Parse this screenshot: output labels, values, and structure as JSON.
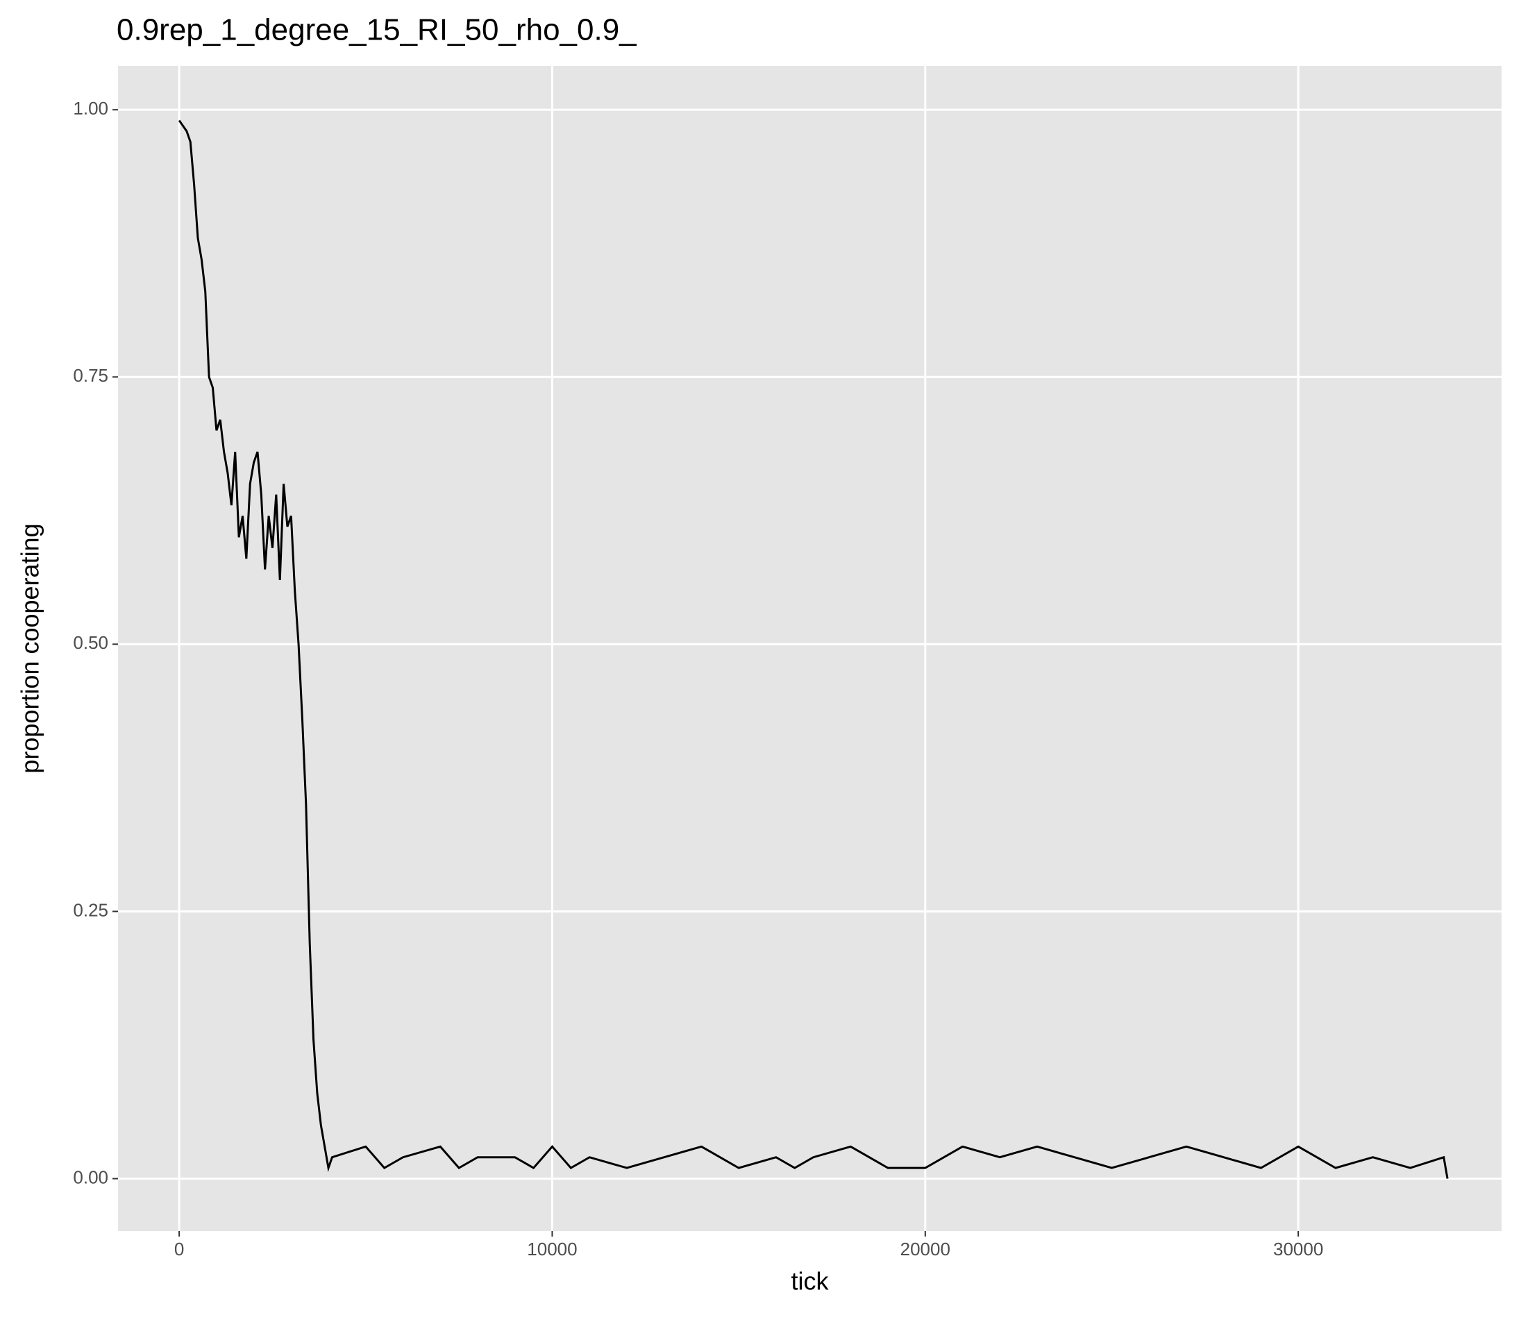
{
  "chart_data": {
    "type": "line",
    "title": "0.9rep_1_degree_15_RI_50_rho_0.9_",
    "x_label": "tick",
    "y_label": "proportion cooperating",
    "x": [
      0,
      200,
      300,
      400,
      500,
      600,
      700,
      800,
      900,
      1000,
      1100,
      1200,
      1300,
      1400,
      1500,
      1600,
      1700,
      1800,
      1900,
      2000,
      2100,
      2200,
      2300,
      2400,
      2500,
      2600,
      2700,
      2800,
      2900,
      3000,
      3100,
      3200,
      3300,
      3400,
      3500,
      3600,
      3700,
      3800,
      3900,
      4000,
      4100,
      5000,
      5500,
      6000,
      7000,
      7500,
      8000,
      9000,
      9500,
      10000,
      10500,
      11000,
      12000,
      13000,
      14000,
      15000,
      16000,
      16500,
      17000,
      18000,
      19000,
      20000,
      21000,
      22000,
      23000,
      24000,
      25000,
      26000,
      27000,
      28000,
      29000,
      30000,
      31000,
      32000,
      33000,
      33900,
      34000
    ],
    "series": [
      {
        "name": "proportion",
        "color": "#000000",
        "values": [
          0.99,
          0.98,
          0.97,
          0.93,
          0.88,
          0.86,
          0.83,
          0.75,
          0.74,
          0.7,
          0.71,
          0.68,
          0.66,
          0.63,
          0.68,
          0.6,
          0.62,
          0.58,
          0.65,
          0.67,
          0.68,
          0.64,
          0.57,
          0.62,
          0.59,
          0.64,
          0.56,
          0.65,
          0.61,
          0.62,
          0.55,
          0.5,
          0.43,
          0.35,
          0.22,
          0.13,
          0.08,
          0.05,
          0.03,
          0.01,
          0.02,
          0.03,
          0.01,
          0.02,
          0.03,
          0.01,
          0.02,
          0.02,
          0.01,
          0.03,
          0.01,
          0.02,
          0.01,
          0.02,
          0.03,
          0.01,
          0.02,
          0.01,
          0.02,
          0.03,
          0.01,
          0.01,
          0.03,
          0.02,
          0.03,
          0.02,
          0.01,
          0.02,
          0.03,
          0.02,
          0.01,
          0.03,
          0.01,
          0.02,
          0.01,
          0.02,
          0.0
        ]
      }
    ],
    "xlim": [
      -1640,
      35450
    ],
    "ylim": [
      -0.049,
      1.041
    ],
    "xticks": [
      0,
      10000,
      20000,
      30000
    ],
    "yticks": [
      {
        "value": 0,
        "label": "0.00"
      },
      {
        "value": 0.25,
        "label": "0.25"
      },
      {
        "value": 0.5,
        "label": "0.50"
      },
      {
        "value": 0.75,
        "label": "0.75"
      },
      {
        "value": 1,
        "label": "1.00"
      }
    ],
    "grid": true,
    "panel_color": "#e5e5e5"
  }
}
